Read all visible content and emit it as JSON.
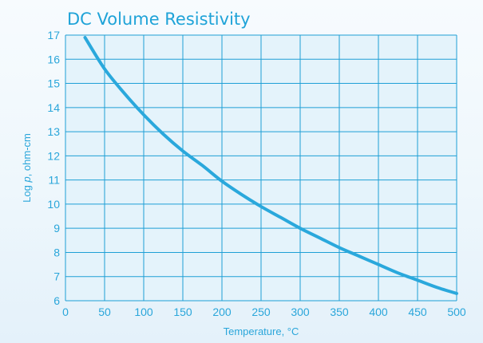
{
  "chart_data": {
    "type": "line",
    "title": "DC Volume Resistivity",
    "xlabel": "Temperature, °C",
    "ylabel": "Log p, ohm-cm",
    "xlim": [
      0,
      500
    ],
    "ylim": [
      6,
      17
    ],
    "x_ticks": [
      "0",
      "50",
      "100",
      "150",
      "200",
      "250",
      "300",
      "350",
      "400",
      "450",
      "500"
    ],
    "y_ticks": [
      "6",
      "7",
      "8",
      "9",
      "10",
      "11",
      "12",
      "13",
      "14",
      "15",
      "16",
      "17"
    ],
    "grid": true,
    "colors": {
      "line": "#2aa8dc",
      "grid": "#1e9fd6",
      "plot_bg": "#e4f3fb",
      "text": "#2aa6da"
    },
    "series": [
      {
        "values": [
          [
            25,
            16.9
          ],
          [
            50,
            15.6
          ],
          [
            75,
            14.6
          ],
          [
            100,
            13.7
          ],
          [
            125,
            12.9
          ],
          [
            150,
            12.2
          ],
          [
            175,
            11.6
          ],
          [
            200,
            10.95
          ],
          [
            225,
            10.4
          ],
          [
            250,
            9.9
          ],
          [
            275,
            9.45
          ],
          [
            300,
            9.0
          ],
          [
            325,
            8.6
          ],
          [
            350,
            8.2
          ],
          [
            375,
            7.85
          ],
          [
            400,
            7.5
          ],
          [
            425,
            7.15
          ],
          [
            450,
            6.85
          ],
          [
            475,
            6.55
          ],
          [
            500,
            6.3
          ]
        ]
      }
    ]
  }
}
